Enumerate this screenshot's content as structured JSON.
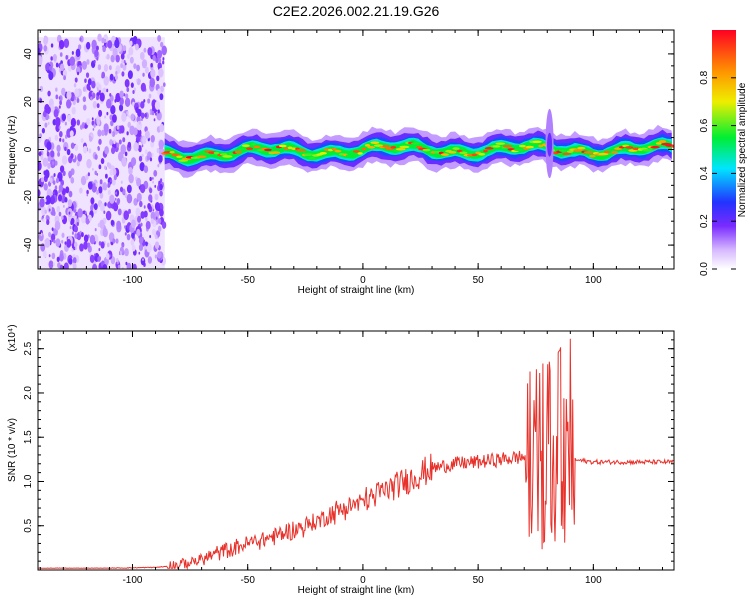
{
  "title": "C2E2.2026.002.21.19.G26",
  "chart_data": [
    {
      "type": "heatmap",
      "xlabel": "Height of straight line (km)",
      "ylabel": "Frequency (Hz)",
      "xlim": [
        -141,
        135
      ],
      "ylim": [
        -50,
        50
      ],
      "xticks": [
        -100,
        -50,
        0,
        50,
        100
      ],
      "yticks": [
        -40,
        -20,
        0,
        20,
        40
      ],
      "colorbar": {
        "label": "Normalized spectral amplitude",
        "range": [
          0,
          1
        ],
        "ticks": [
          "0.0",
          "0.2",
          "0.4",
          "0.6",
          "0.8"
        ],
        "tick_values": [
          0,
          0.2,
          0.4,
          0.6,
          0.8
        ]
      },
      "regions": [
        {
          "x_range": [
            -141,
            -86
          ],
          "y_range": [
            -50,
            47
          ],
          "description": "noise",
          "amplitude": [
            0.05,
            0.2
          ]
        },
        {
          "x_range": [
            -86,
            135
          ],
          "center_freq": 0,
          "width_hz": 8,
          "amplitude": [
            0.3,
            1.0
          ]
        }
      ],
      "spike": {
        "x": 81,
        "freq_range": [
          -12,
          17
        ]
      }
    },
    {
      "type": "line",
      "xlabel": "Height of straight line (km)",
      "ylabel": "SNR (10 * v/v)",
      "y_multiplier": "(x10⁴)",
      "xlim": [
        -141,
        135
      ],
      "ylim": [
        0,
        2.7
      ],
      "xticks": [
        -100,
        -50,
        0,
        50,
        100
      ],
      "yticks": [
        0.5,
        1.0,
        1.5,
        2.0,
        2.5
      ],
      "ytick_labels": [
        "0.5",
        "1.0",
        "1.5",
        "2.0",
        "2.5"
      ],
      "color": "#e8312a",
      "series": [
        {
          "x": [
            -141,
            -110,
            -90,
            -80,
            -70,
            -60,
            -50,
            -40,
            -30,
            -20,
            -10,
            0,
            10,
            20,
            30,
            40,
            50,
            60,
            70,
            75,
            80,
            85,
            90,
            100,
            110,
            120,
            135
          ],
          "values": [
            0.02,
            0.02,
            0.03,
            0.05,
            0.12,
            0.22,
            0.3,
            0.37,
            0.45,
            0.55,
            0.68,
            0.78,
            0.9,
            1.02,
            1.15,
            1.2,
            1.22,
            1.25,
            1.28,
            1.35,
            1.3,
            1.4,
            1.25,
            1.22,
            1.22,
            1.22,
            1.22
          ]
        }
      ]
    }
  ]
}
